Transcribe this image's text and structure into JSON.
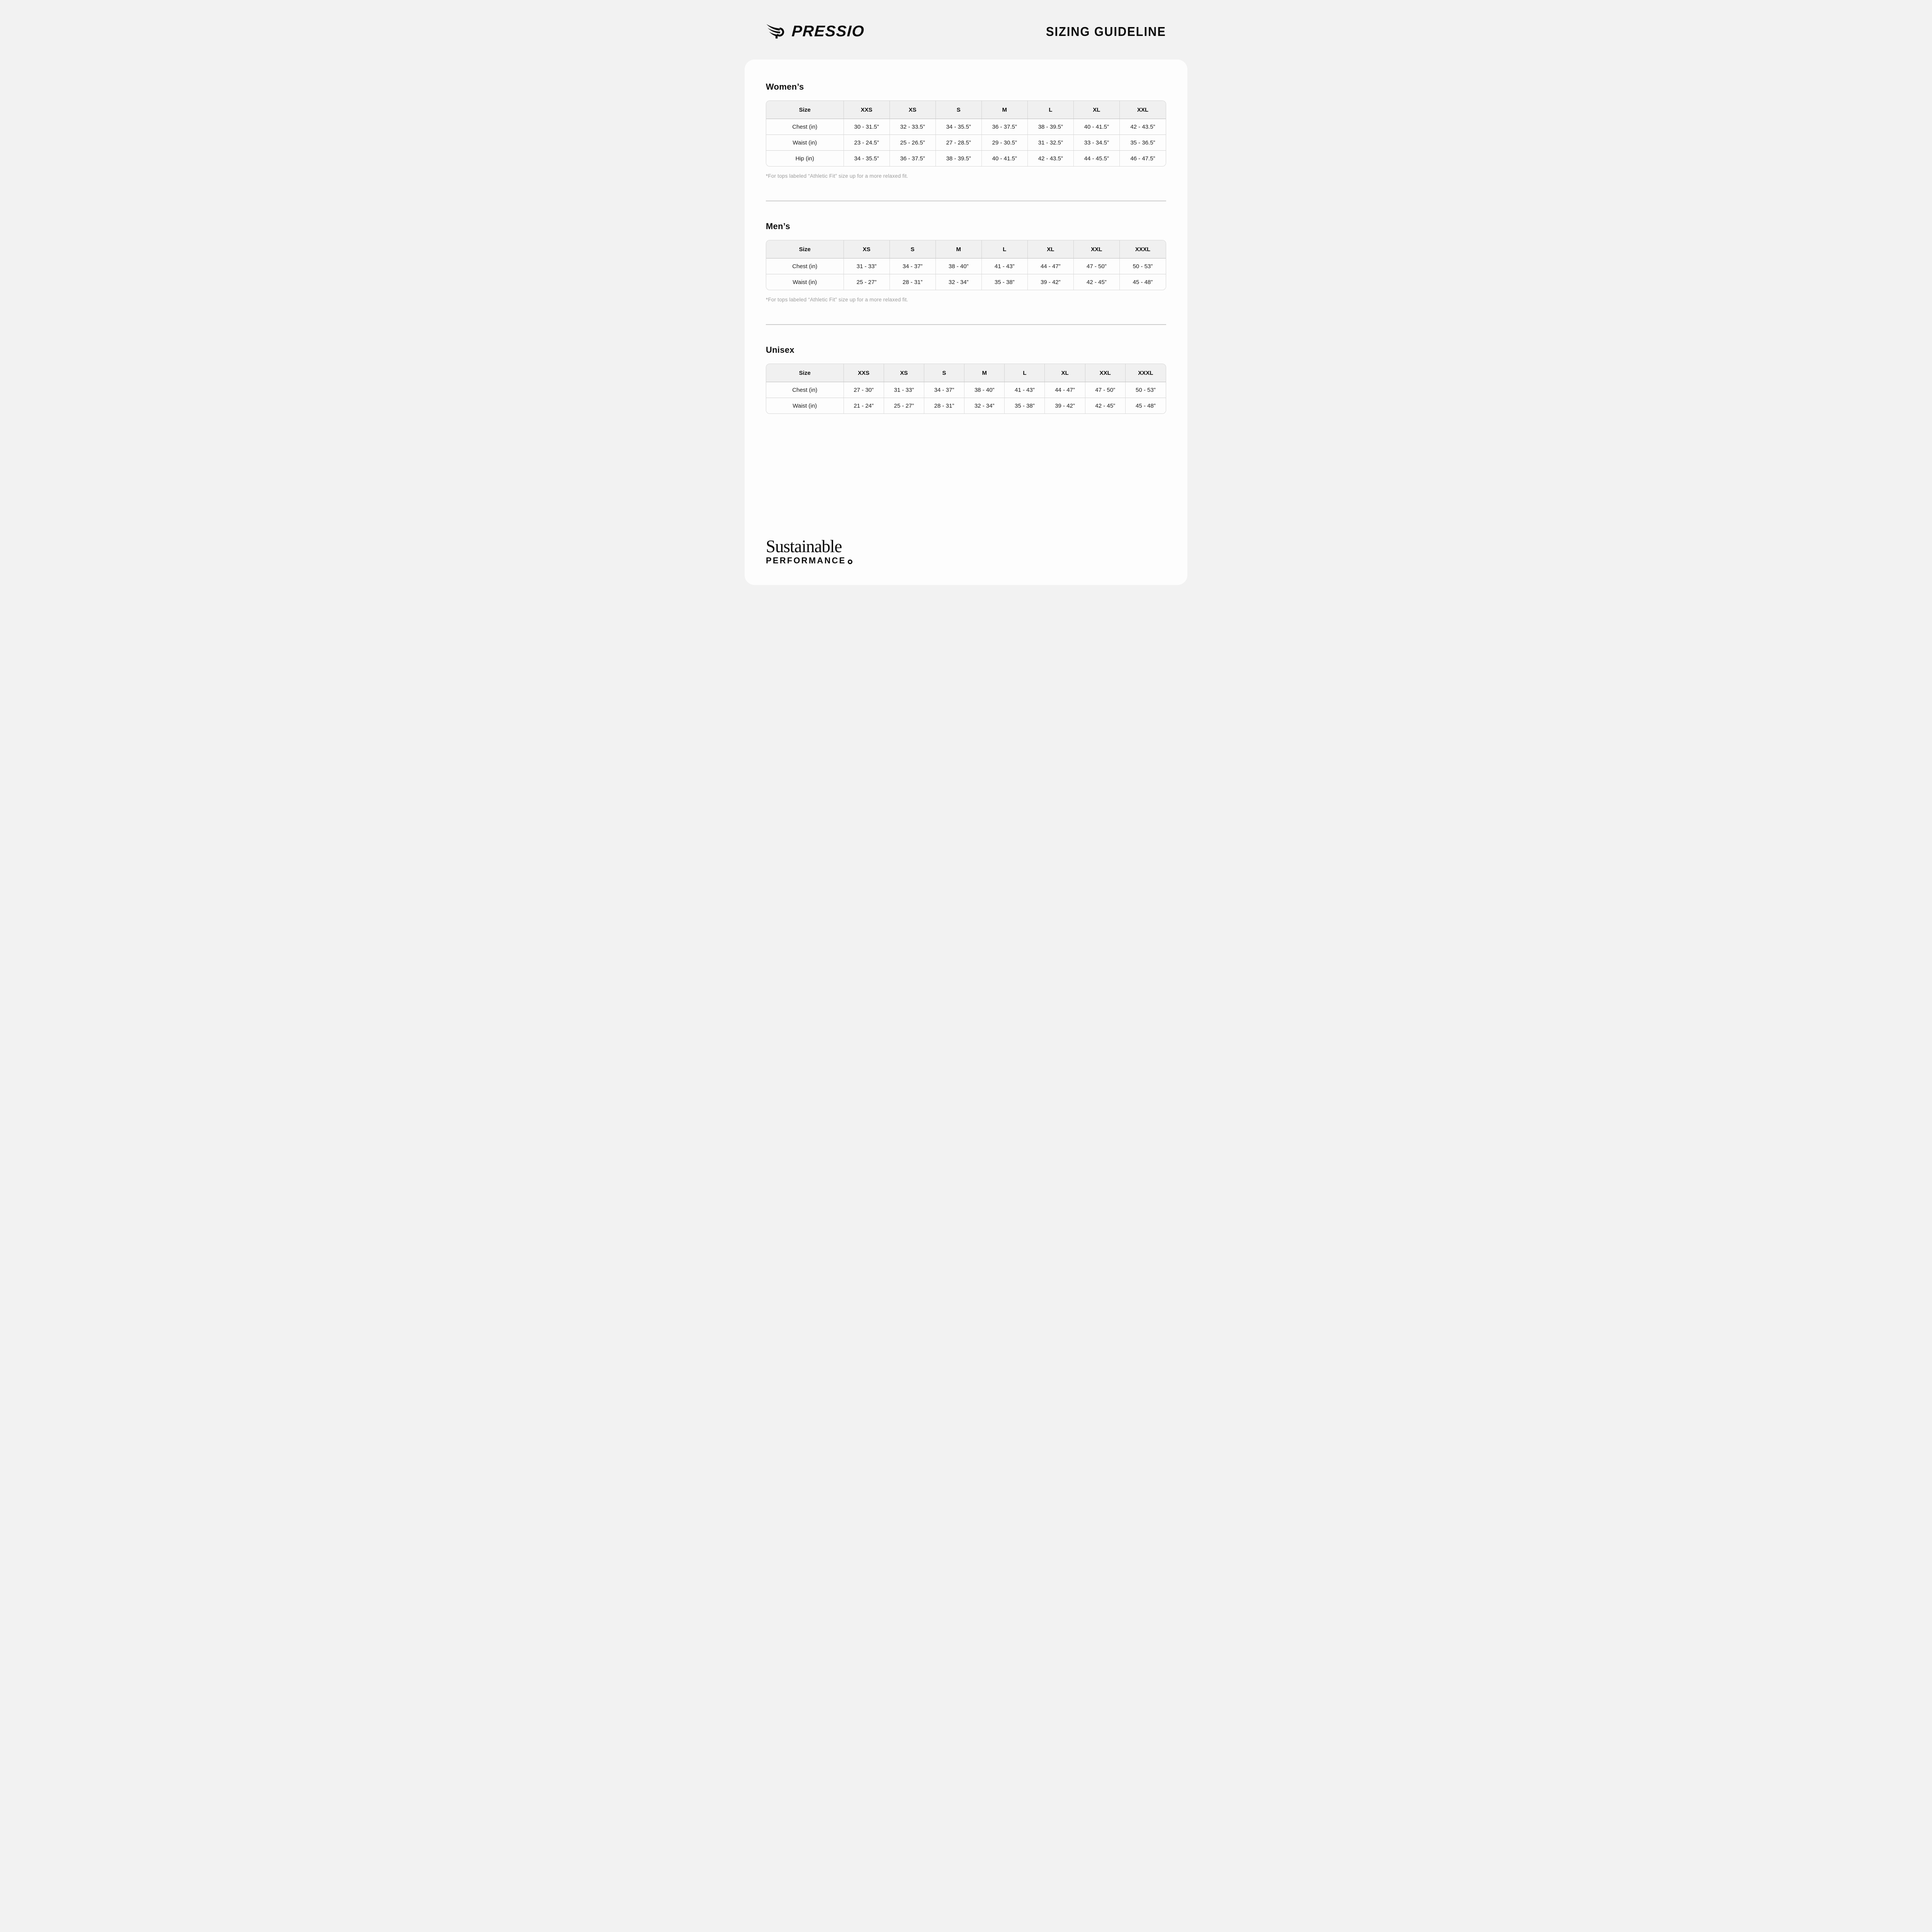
{
  "header": {
    "brand": "PRESSIO",
    "title": "SIZING GUIDELINE"
  },
  "sections": [
    {
      "id": "womens",
      "heading": "Women’s",
      "columns": [
        "Size",
        "XXS",
        "XS",
        "S",
        "M",
        "L",
        "XL",
        "XXL"
      ],
      "rows": [
        {
          "label": "Chest (in)",
          "values": [
            "30 - 31.5”",
            "32 - 33.5”",
            "34 - 35.5”",
            "36 - 37.5”",
            "38 - 39.5”",
            "40 - 41.5”",
            "42 - 43.5”"
          ]
        },
        {
          "label": "Waist (in)",
          "values": [
            "23 - 24.5”",
            "25 - 26.5”",
            "27 - 28.5”",
            "29 - 30.5”",
            "31 - 32.5”",
            "33 - 34.5”",
            "35 - 36.5”"
          ]
        },
        {
          "label": "Hip (in)",
          "values": [
            "34 - 35.5”",
            "36 - 37.5”",
            "38 - 39.5”",
            "40 - 41.5”",
            "42 - 43.5”",
            "44 - 45.5”",
            "46 - 47.5”"
          ]
        }
      ],
      "footnote": "*For tops labeled “Athletic Fit” size up for a more relaxed fit."
    },
    {
      "id": "mens",
      "heading": "Men’s",
      "columns": [
        "Size",
        "XS",
        "S",
        "M",
        "L",
        "XL",
        "XXL",
        "XXXL"
      ],
      "rows": [
        {
          "label": "Chest (in)",
          "values": [
            "31 - 33”",
            "34 - 37”",
            "38 - 40”",
            "41 - 43”",
            "44 - 47”",
            "47 - 50”",
            "50 - 53”"
          ]
        },
        {
          "label": "Waist (in)",
          "values": [
            "25 - 27”",
            "28 - 31”",
            "32 - 34”",
            "35 - 38”",
            "39 - 42”",
            "42 - 45”",
            "45 - 48”"
          ]
        }
      ],
      "footnote": "*For tops labeled “Athletic Fit” size up for a more relaxed fit."
    },
    {
      "id": "unisex",
      "heading": "Unisex",
      "columns": [
        "Size",
        "XXS",
        "XS",
        "S",
        "M",
        "L",
        "XL",
        "XXL",
        "XXXL"
      ],
      "rows": [
        {
          "label": "Chest (in)",
          "values": [
            "27 - 30”",
            "31 - 33”",
            "34 - 37”",
            "38 - 40”",
            "41 - 43”",
            "44 - 47”",
            "47 - 50”",
            "50 - 53”"
          ]
        },
        {
          "label": "Waist (in)",
          "values": [
            "21 - 24”",
            "25 - 27”",
            "28 - 31”",
            "32 - 34”",
            "35 - 38”",
            "39 - 42”",
            "42 - 45”",
            "45 - 48”"
          ]
        }
      ],
      "footnote": ""
    }
  ],
  "footer": {
    "line1": "Sustainable",
    "line2": "PERFORMANCE"
  }
}
